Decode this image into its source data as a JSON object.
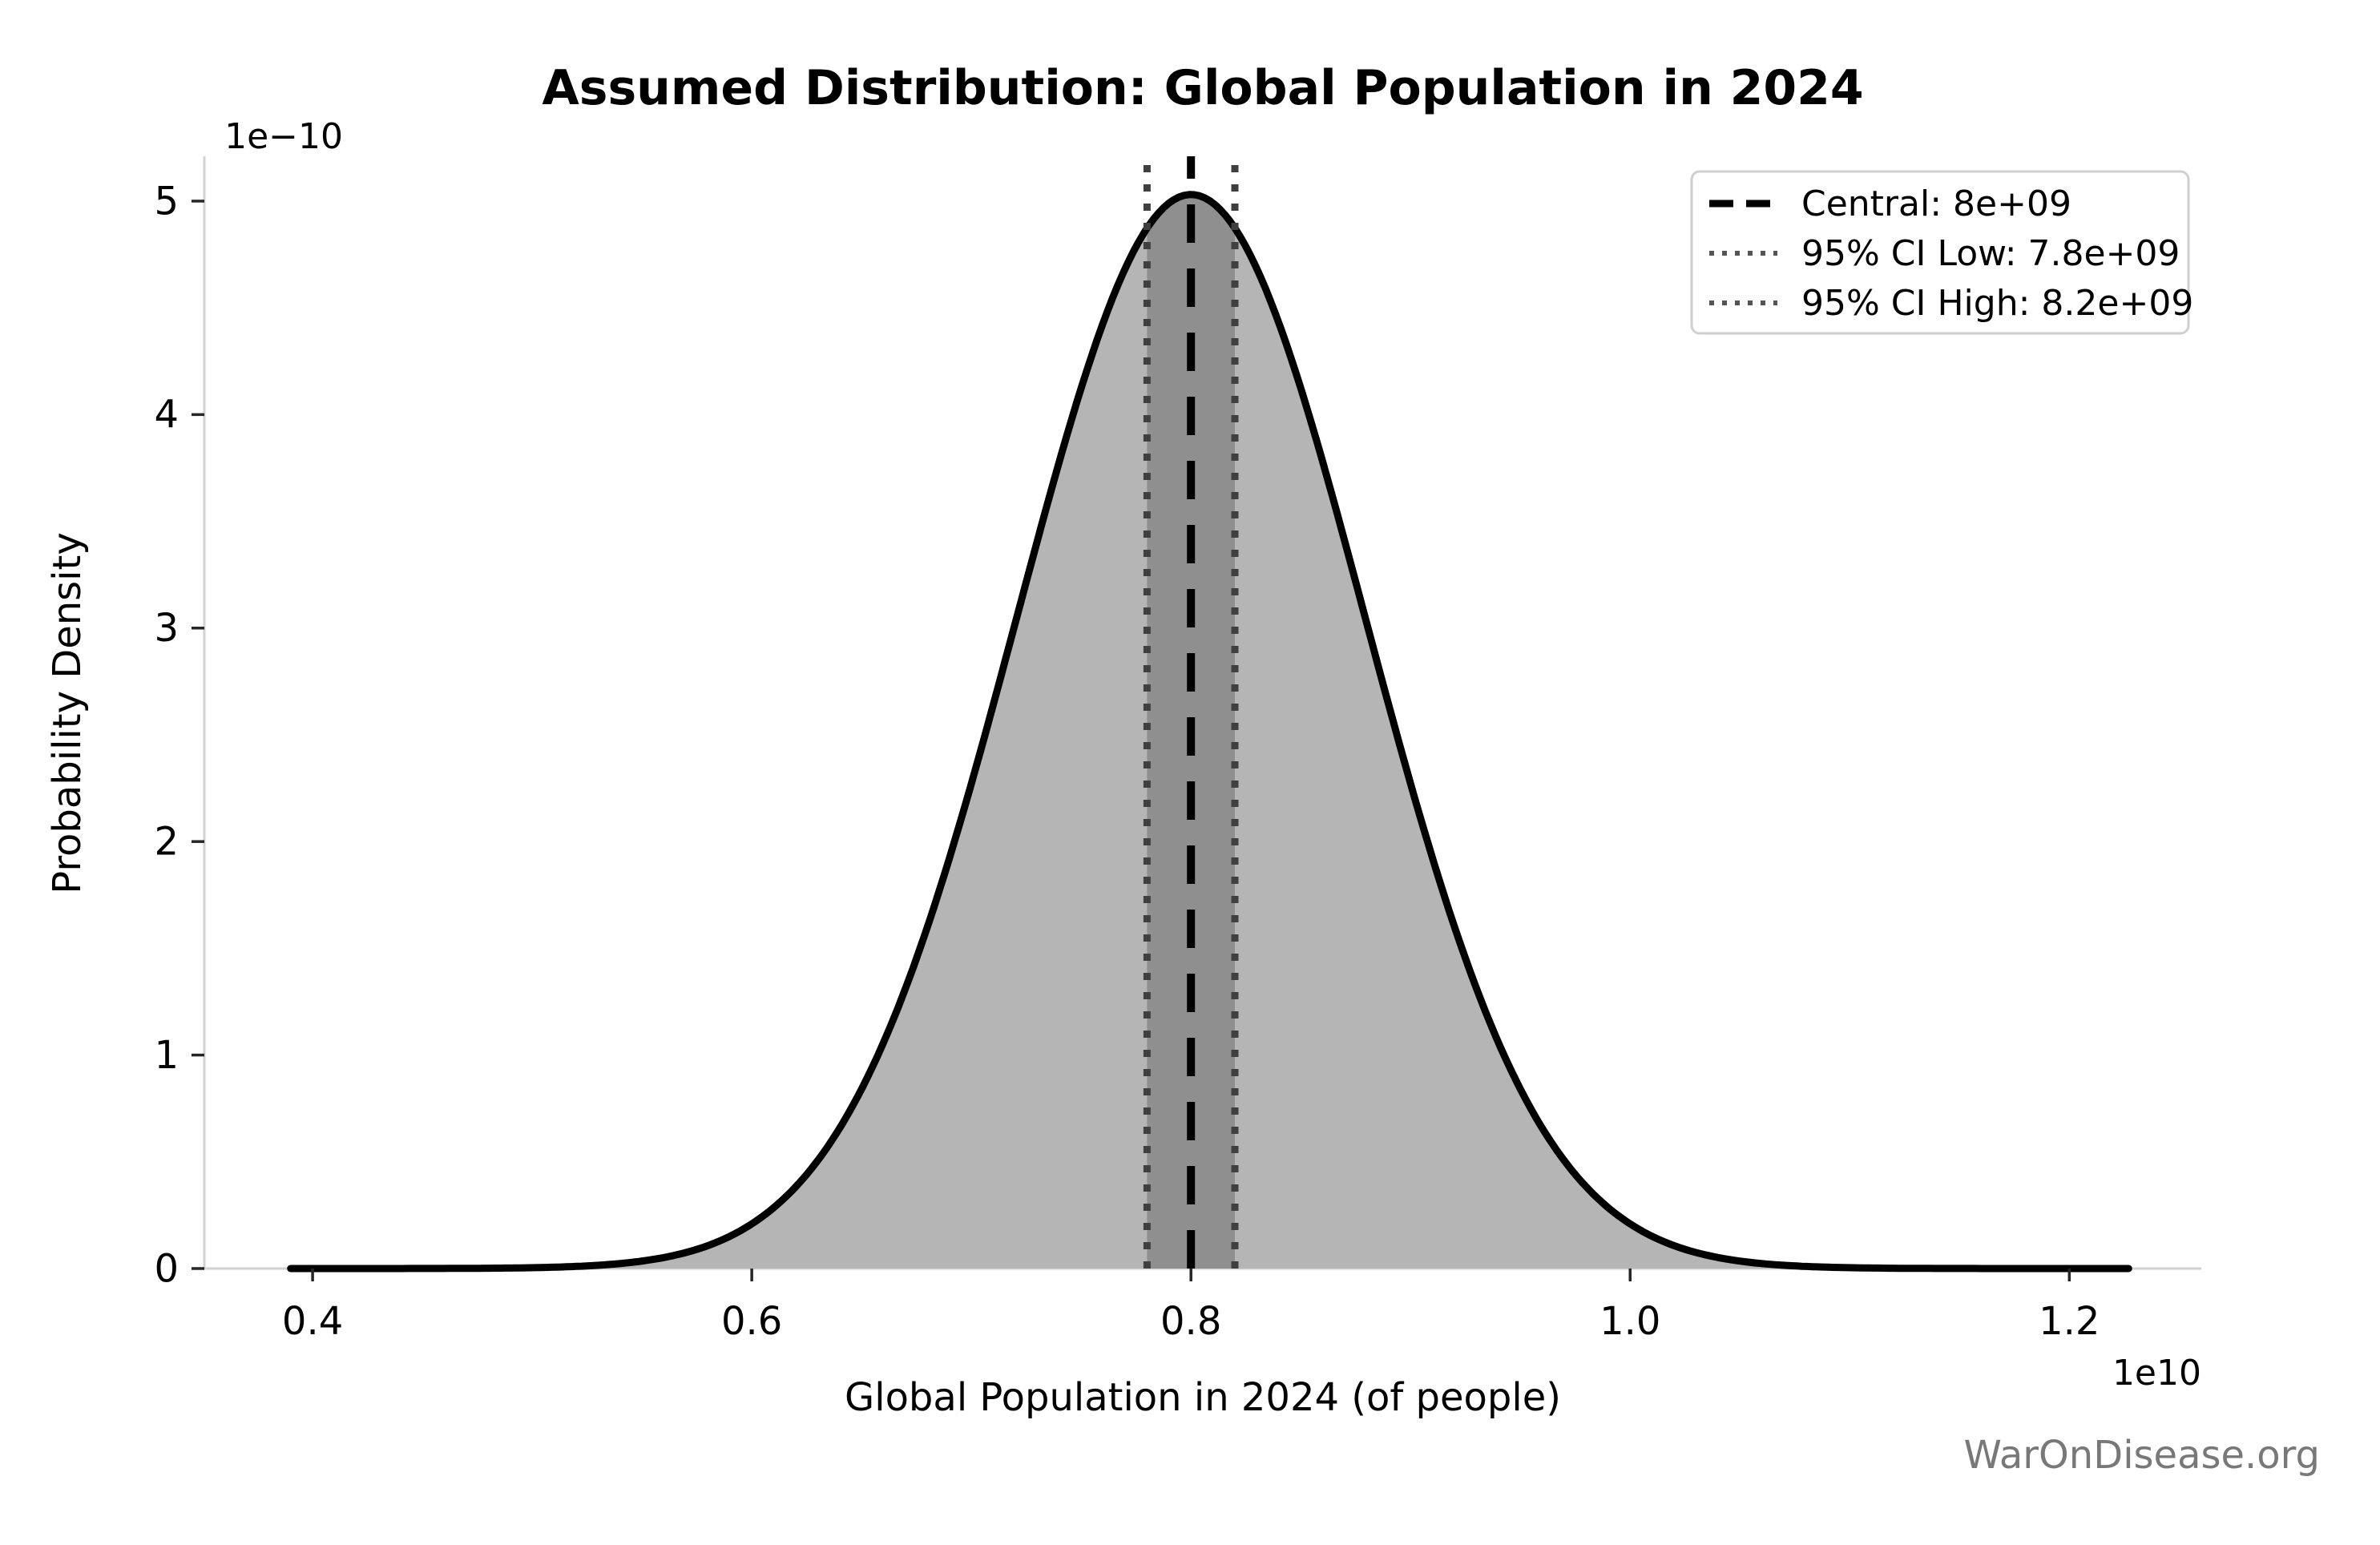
{
  "title": "Assumed Distribution: Global Population in 2024",
  "watermark": "WarOnDisease.org",
  "chart_data": {
    "type": "area",
    "title": "Assumed Distribution: Global Population in 2024",
    "xlabel": "Global Population in 2024 (of people)",
    "ylabel": "Probability Density",
    "x_offset_label": "1e10",
    "y_offset_label": "1e−10",
    "grid": false,
    "legend_position": "upper right",
    "xlim": [
      3507000000,
      12601000000
    ],
    "ylim": [
      0,
      5.21e-10
    ],
    "x_ticks": {
      "values": [
        4000000000,
        6000000000,
        8000000000,
        10000000000,
        12000000000
      ],
      "labels": [
        "0.4",
        "0.6",
        "0.8",
        "1.0",
        "1.2"
      ]
    },
    "y_ticks": {
      "values": [
        0,
        1e-10,
        2e-10,
        3e-10,
        4e-10,
        5e-10
      ],
      "labels": [
        "0",
        "1",
        "2",
        "3",
        "4",
        "5"
      ]
    },
    "distribution": {
      "shape": "normal",
      "mean": 8000000000,
      "sigma": 793000000,
      "peak_density": 5.03e-10,
      "x_range": [
        3900000000,
        12270000000
      ]
    },
    "central": {
      "value": 8000000000,
      "style": "dashed",
      "color": "#000000"
    },
    "ci_low": {
      "value": 7800000000,
      "style": "dotted",
      "color": "#3f3f3f"
    },
    "ci_high": {
      "value": 8200000000,
      "style": "dotted",
      "color": "#3f3f3f"
    },
    "ci_band": {
      "from": 7800000000,
      "to": 8200000000,
      "color": "#8f8f8f"
    },
    "fill_color": "#b5b5b5",
    "curve_color": "#000000",
    "spine_color": "#d2d2d2",
    "tick_color": "#262626",
    "legend": {
      "items": [
        {
          "label": "Central: 8e+09",
          "style": "dashed",
          "color": "#000000"
        },
        {
          "label": "95% CI Low: 7.8e+09",
          "style": "dotted",
          "color": "#555555"
        },
        {
          "label": "95% CI High: 8.2e+09",
          "style": "dotted",
          "color": "#555555"
        }
      ]
    }
  }
}
